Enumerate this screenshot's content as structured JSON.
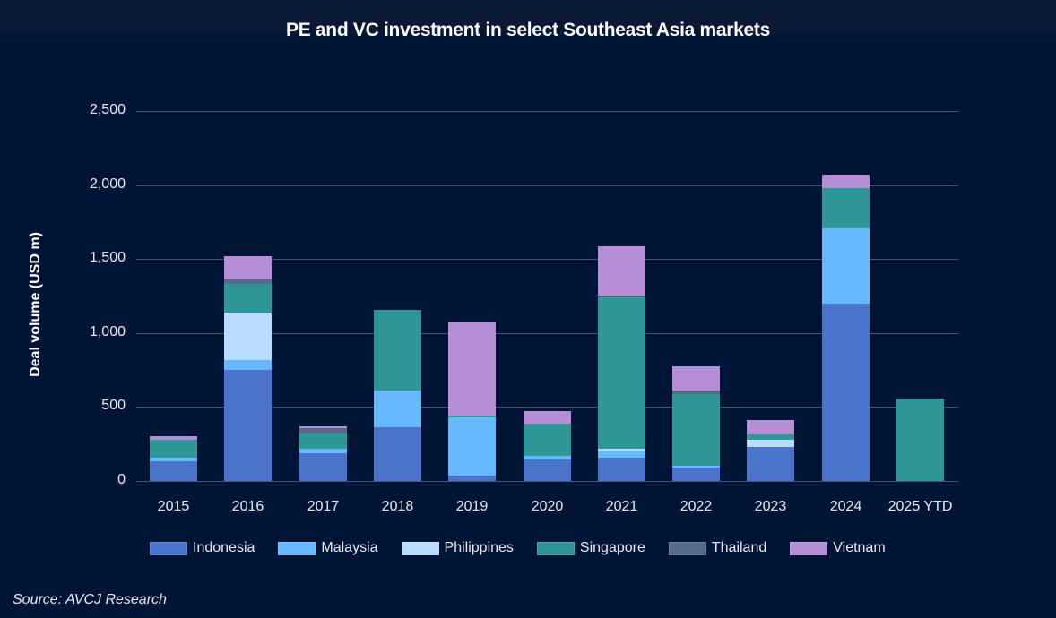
{
  "title": "PE and VC investment in select Southeast Asia markets",
  "source": "Source: AVCJ Research",
  "chart_data": {
    "type": "bar",
    "stacked": true,
    "title": "PE and VC investment in select Southeast Asia markets",
    "xlabel": "",
    "ylabel": "Deal volume (USD m)",
    "ylim": [
      0,
      2500
    ],
    "yticks": [
      0,
      500,
      1000,
      1500,
      2000,
      2500
    ],
    "ytick_labels": [
      "0",
      "500",
      "1,000",
      "1,500",
      "2,000",
      "2,500"
    ],
    "grid": true,
    "legend_position": "bottom",
    "categories": [
      "2015",
      "2016",
      "2017",
      "2018",
      "2019",
      "2020",
      "2021",
      "2022",
      "2023",
      "2024",
      "2025 YTD"
    ],
    "series": [
      {
        "name": "Indonesia",
        "color": "#4a74cc",
        "values": [
          132,
          752,
          190,
          363,
          37,
          145,
          158,
          93,
          232,
          1197,
          0
        ]
      },
      {
        "name": "Malaysia",
        "color": "#66b8ff",
        "values": [
          25,
          63,
          28,
          250,
          391,
          25,
          50,
          8,
          0,
          512,
          0
        ]
      },
      {
        "name": "Philippines",
        "color": "#b8dcff",
        "values": [
          0,
          323,
          0,
          0,
          0,
          0,
          12,
          0,
          45,
          0,
          0
        ]
      },
      {
        "name": "Singapore",
        "color": "#2e9696",
        "values": [
          120,
          192,
          105,
          541,
          16,
          220,
          1025,
          489,
          36,
          269,
          557
        ]
      },
      {
        "name": "Thailand",
        "color": "#556b8a",
        "values": [
          0,
          32,
          32,
          0,
          0,
          0,
          5,
          24,
          0,
          0,
          0
        ]
      },
      {
        "name": "Vietnam",
        "color": "#b68ed6",
        "values": [
          28,
          159,
          12,
          0,
          626,
          82,
          334,
          159,
          101,
          90,
          0
        ]
      }
    ]
  }
}
